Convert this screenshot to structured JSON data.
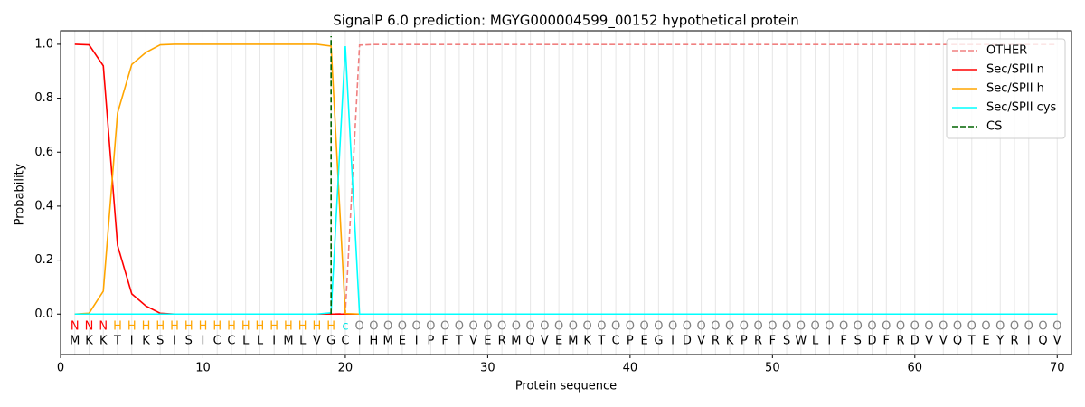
{
  "chart_data": {
    "type": "line",
    "title": "SignalP 6.0 prediction: MGYG000004599_00152 hypothetical protein",
    "xlabel": "Protein sequence",
    "ylabel": "Probability",
    "xlim": [
      0,
      71
    ],
    "ylim": [
      -0.15,
      1.05
    ],
    "xticks": [
      0,
      10,
      20,
      30,
      40,
      50,
      60,
      70
    ],
    "yticks": [
      {
        "value": 0,
        "label": "0.0"
      },
      0.2,
      0.4,
      0.6,
      0.8,
      {
        "value": 1,
        "label": "1.0"
      }
    ],
    "legend": "upper right",
    "x": [
      1,
      2,
      3,
      4,
      5,
      6,
      7,
      8,
      9,
      10,
      11,
      12,
      13,
      14,
      15,
      16,
      17,
      18,
      19,
      20,
      21,
      22,
      23,
      24,
      25,
      26,
      27,
      28,
      29,
      30,
      31,
      32,
      33,
      34,
      35,
      36,
      37,
      38,
      39,
      40,
      41,
      42,
      43,
      44,
      45,
      46,
      47,
      48,
      49,
      50,
      51,
      52,
      53,
      54,
      55,
      56,
      57,
      58,
      59,
      60,
      61,
      62,
      63,
      64,
      65,
      66,
      67,
      68,
      69,
      70
    ],
    "sequence": [
      "M",
      "K",
      "K",
      "T",
      "I",
      "K",
      "S",
      "I",
      "S",
      "I",
      "C",
      "C",
      "L",
      "L",
      "I",
      "M",
      "L",
      "V",
      "G",
      "C",
      "I",
      "H",
      "M",
      "E",
      "I",
      "P",
      "F",
      "T",
      "V",
      "E",
      "R",
      "M",
      "Q",
      "V",
      "E",
      "M",
      "K",
      "T",
      "C",
      "P",
      "E",
      "G",
      "I",
      "D",
      "V",
      "R",
      "K",
      "P",
      "R",
      "F",
      "S",
      "W",
      "L",
      "I",
      "F",
      "S",
      "D",
      "F",
      "R",
      "D",
      "V",
      "V",
      "Q",
      "T",
      "E",
      "Y",
      "R",
      "I",
      "Q",
      "V"
    ],
    "region_labels": [
      "N",
      "N",
      "N",
      "H",
      "H",
      "H",
      "H",
      "H",
      "H",
      "H",
      "H",
      "H",
      "H",
      "H",
      "H",
      "H",
      "H",
      "H",
      "H",
      "c",
      "O",
      "O",
      "O",
      "O",
      "O",
      "O",
      "O",
      "O",
      "O",
      "O",
      "O",
      "O",
      "O",
      "O",
      "O",
      "O",
      "O",
      "O",
      "O",
      "O",
      "O",
      "O",
      "O",
      "O",
      "O",
      "O",
      "O",
      "O",
      "O",
      "O",
      "O",
      "O",
      "O",
      "O",
      "O",
      "O",
      "O",
      "O",
      "O",
      "O",
      "O",
      "O",
      "O",
      "O",
      "O",
      "O",
      "O",
      "O",
      "O",
      "O"
    ],
    "region_colors": {
      "N": "#ff0000",
      "H": "#ffa500",
      "c": "#00e5e5",
      "O": "#808080"
    },
    "series": [
      {
        "name": "OTHER",
        "color": "#f08080",
        "linestyle": "dashed",
        "values": [
          0,
          0,
          0,
          0,
          0,
          0,
          0,
          0,
          0,
          0,
          0,
          0,
          0,
          0,
          0,
          0,
          0,
          0,
          0,
          0.002,
          0.997,
          0.999,
          0.999,
          0.999,
          0.999,
          0.999,
          0.999,
          0.999,
          0.999,
          0.999,
          0.999,
          0.999,
          0.999,
          0.999,
          0.999,
          0.999,
          0.999,
          0.999,
          0.999,
          0.999,
          0.999,
          0.999,
          0.999,
          0.999,
          0.999,
          0.999,
          0.999,
          0.999,
          0.999,
          0.999,
          0.999,
          0.999,
          0.999,
          0.999,
          0.999,
          0.999,
          0.999,
          0.999,
          0.999,
          0.999,
          0.999,
          0.999,
          0.999,
          0.999,
          0.999,
          0.999,
          0.999,
          0.999,
          0.999,
          0.999
        ]
      },
      {
        "name": "Sec/SPII n",
        "color": "#ff0000",
        "linestyle": "solid",
        "values": [
          1.0,
          0.998,
          0.92,
          0.255,
          0.075,
          0.03,
          0.003,
          0,
          0,
          0,
          0,
          0,
          0,
          0,
          0,
          0,
          0,
          0,
          0,
          0,
          0,
          0,
          0,
          0,
          0,
          0,
          0,
          0,
          0,
          0,
          0,
          0,
          0,
          0,
          0,
          0,
          0,
          0,
          0,
          0,
          0,
          0,
          0,
          0,
          0,
          0,
          0,
          0,
          0,
          0,
          0,
          0,
          0,
          0,
          0,
          0,
          0,
          0,
          0,
          0,
          0,
          0,
          0,
          0,
          0,
          0,
          0,
          0,
          0,
          0
        ]
      },
      {
        "name": "Sec/SPII h",
        "color": "#ffa500",
        "linestyle": "solid",
        "values": [
          0,
          0.003,
          0.085,
          0.745,
          0.925,
          0.97,
          0.998,
          1.0,
          1.0,
          1.0,
          1.0,
          1.0,
          1.0,
          1.0,
          1.0,
          1.0,
          1.0,
          1.0,
          0.993,
          0.002,
          0,
          0,
          0,
          0,
          0,
          0,
          0,
          0,
          0,
          0,
          0,
          0,
          0,
          0,
          0,
          0,
          0,
          0,
          0,
          0,
          0,
          0,
          0,
          0,
          0,
          0,
          0,
          0,
          0,
          0,
          0,
          0,
          0,
          0,
          0,
          0,
          0,
          0,
          0,
          0,
          0,
          0,
          0,
          0,
          0,
          0,
          0,
          0,
          0,
          0
        ]
      },
      {
        "name": "Sec/SPII cys",
        "color": "#00ffff",
        "linestyle": "solid",
        "values": [
          0,
          0,
          0,
          0,
          0,
          0,
          0,
          0,
          0,
          0,
          0,
          0,
          0,
          0,
          0,
          0,
          0,
          0,
          0.005,
          0.993,
          0,
          0,
          0,
          0,
          0,
          0,
          0,
          0,
          0,
          0,
          0,
          0,
          0,
          0,
          0,
          0,
          0,
          0,
          0,
          0,
          0,
          0,
          0,
          0,
          0,
          0,
          0,
          0,
          0,
          0,
          0,
          0,
          0,
          0,
          0,
          0,
          0,
          0,
          0,
          0,
          0,
          0,
          0,
          0,
          0,
          0,
          0,
          0,
          0,
          0
        ]
      }
    ],
    "cleavage_site": {
      "name": "CS",
      "color": "#006400",
      "x": 19
    }
  }
}
